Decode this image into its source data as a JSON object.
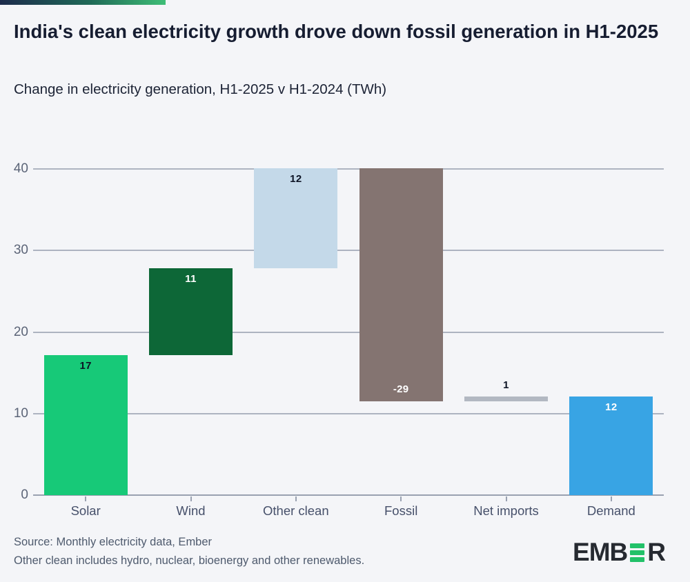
{
  "page": {
    "background": "#f4f5f8",
    "accent_gradient": {
      "from": "#1d2b4c",
      "to": "#3fbe77"
    }
  },
  "chart_data": {
    "type": "waterfall",
    "title": "India's clean electricity growth drove down fossil generation in H1-2025",
    "subtitle": "Change in electricity generation, H1-2025 v H1-2024 (TWh)",
    "unit": "TWh",
    "categories": [
      "Solar",
      "Wind",
      "Other clean",
      "Fossil",
      "Net imports",
      "Demand"
    ],
    "values": [
      17,
      11,
      12,
      -29,
      1,
      12
    ],
    "xlabel": "",
    "ylabel": "",
    "ylim": [
      0,
      40
    ],
    "yticks": [
      0,
      10,
      20,
      30,
      40
    ],
    "grid": true,
    "legend": false,
    "grid_color": "#adb3c0",
    "bars": [
      {
        "category": "Solar",
        "label": "17",
        "from": 0,
        "to": 17.2,
        "color": "#17c978",
        "label_color": "#0d1425",
        "label_pos": "inside-top"
      },
      {
        "category": "Wind",
        "label": "11",
        "from": 17.2,
        "to": 27.8,
        "color": "#0d6737",
        "label_color": "#ffffff",
        "label_pos": "inside-top"
      },
      {
        "category": "Other clean",
        "label": "12",
        "from": 27.8,
        "to": 40.1,
        "color": "#c4d9e9",
        "label_color": "#0d1425",
        "label_pos": "inside-top"
      },
      {
        "category": "Fossil",
        "label": "-29",
        "from": 40.1,
        "to": 11.5,
        "color": "#847471",
        "label_color": "#ffffff",
        "label_pos": "inside-bottom"
      },
      {
        "category": "Net imports",
        "label": "1",
        "from": 11.5,
        "to": 12.1,
        "color": "#b2b8c2",
        "label_color": "#0d1425",
        "label_pos": "above"
      },
      {
        "category": "Demand",
        "label": "12",
        "from": 0,
        "to": 12.1,
        "color": "#38a4e4",
        "label_color": "#ffffff",
        "label_pos": "inside-top"
      }
    ]
  },
  "footer": {
    "source_line": "Source: Monthly electricity data, Ember",
    "note_line": "Other clean includes hydro, nuclear, bioenergy and other renewables.",
    "logo": {
      "prefix": "EMB",
      "stylized_letter": "E",
      "suffix": "R",
      "green": "#22c169",
      "dark": "#262a31"
    }
  }
}
